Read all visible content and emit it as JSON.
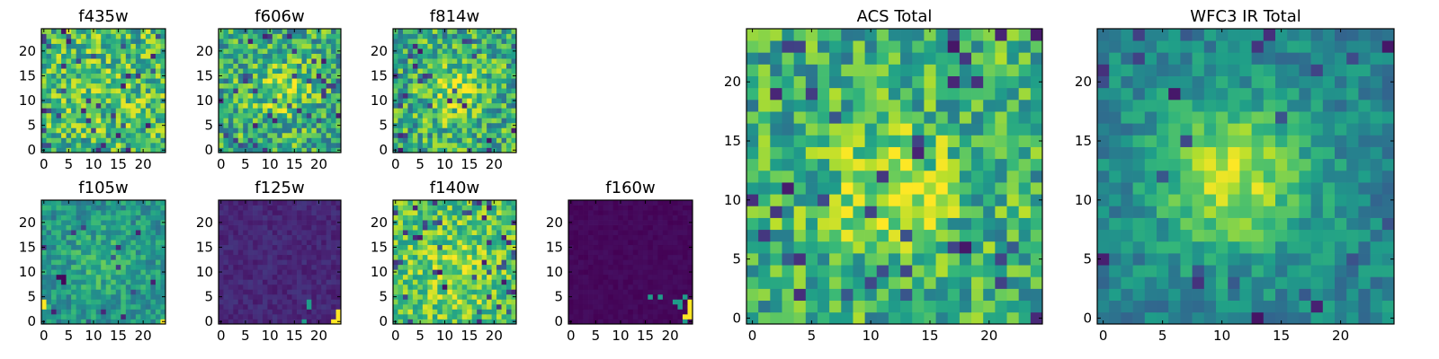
{
  "colormap": "viridis",
  "colors": {
    "viridis_low": "#440154",
    "viridis_mid": "#21918c",
    "viridis_high": "#fde725",
    "frame": "#000000",
    "background": "#ffffff"
  },
  "chart_data": [
    {
      "type": "heatmap",
      "title": "f435w",
      "grid": false,
      "xlim": [
        0,
        24
      ],
      "ylim": [
        0,
        24
      ],
      "xticks": [
        "0",
        "5",
        "10",
        "15",
        "20"
      ],
      "yticks": [
        "0",
        "5",
        "10",
        "15",
        "20"
      ],
      "value_range": [
        0,
        1
      ],
      "pattern": {
        "base": 0.68,
        "noise": 0.28,
        "peak": 0.05,
        "sigma": 5,
        "cx": 12,
        "cy": 12,
        "dips": 0.05,
        "seed": 11
      }
    },
    {
      "type": "heatmap",
      "title": "f606w",
      "grid": false,
      "xlim": [
        0,
        24
      ],
      "ylim": [
        0,
        24
      ],
      "xticks": [
        "0",
        "5",
        "10",
        "15",
        "20"
      ],
      "yticks": [
        "0",
        "5",
        "10",
        "15",
        "20"
      ],
      "value_range": [
        0,
        1
      ],
      "pattern": {
        "base": 0.62,
        "noise": 0.28,
        "peak": 0.22,
        "sigma": 4,
        "cx": 12,
        "cy": 12,
        "dips": 0.05,
        "seed": 23
      }
    },
    {
      "type": "heatmap",
      "title": "f814w",
      "grid": false,
      "xlim": [
        0,
        24
      ],
      "ylim": [
        0,
        24
      ],
      "xticks": [
        "0",
        "5",
        "10",
        "15",
        "20"
      ],
      "yticks": [
        "0",
        "5",
        "10",
        "15",
        "20"
      ],
      "value_range": [
        0,
        1
      ],
      "pattern": {
        "base": 0.62,
        "noise": 0.28,
        "peak": 0.25,
        "sigma": 4,
        "cx": 12,
        "cy": 12,
        "dips": 0.05,
        "seed": 37
      }
    },
    {
      "type": "heatmap",
      "title": "f105w",
      "grid": false,
      "xlim": [
        0,
        24
      ],
      "ylim": [
        0,
        24
      ],
      "xticks": [
        "0",
        "5",
        "10",
        "15",
        "20"
      ],
      "yticks": [
        "0",
        "5",
        "10",
        "15",
        "20"
      ],
      "value_range": [
        0,
        1
      ],
      "pattern": {
        "base": 0.52,
        "noise": 0.16,
        "peak": 0.12,
        "sigma": 5,
        "cx": 12,
        "cy": 12,
        "dips": 0.02,
        "seed": 41,
        "hot": [
          [
            0,
            4
          ],
          [
            0,
            3
          ],
          [
            24,
            0
          ]
        ],
        "cold": [
          [
            4,
            9
          ],
          [
            3,
            9
          ],
          [
            4,
            8
          ]
        ]
      }
    },
    {
      "type": "heatmap",
      "title": "f125w",
      "grid": false,
      "xlim": [
        0,
        24
      ],
      "ylim": [
        0,
        24
      ],
      "xticks": [
        "0",
        "5",
        "10",
        "15",
        "20"
      ],
      "yticks": [
        "0",
        "5",
        "10",
        "15",
        "20"
      ],
      "value_range": [
        0,
        1
      ],
      "pattern": {
        "base": 0.11,
        "noise": 0.05,
        "peak": 0.0,
        "sigma": 5,
        "cx": 12,
        "cy": 12,
        "dips": 0.0,
        "seed": 53,
        "hot": [
          [
            24,
            0
          ],
          [
            24,
            1
          ],
          [
            23,
            0
          ],
          [
            24,
            2
          ]
        ],
        "warm": [
          [
            18,
            4
          ],
          [
            18,
            3
          ],
          [
            17,
            0
          ]
        ]
      }
    },
    {
      "type": "heatmap",
      "title": "f140w",
      "grid": false,
      "xlim": [
        0,
        24
      ],
      "ylim": [
        0,
        24
      ],
      "xticks": [
        "0",
        "5",
        "10",
        "15",
        "20"
      ],
      "yticks": [
        "0",
        "5",
        "10",
        "15",
        "20"
      ],
      "value_range": [
        0,
        1
      ],
      "pattern": {
        "base": 0.72,
        "noise": 0.22,
        "peak": 0.1,
        "sigma": 6,
        "cx": 12,
        "cy": 10,
        "dips": 0.06,
        "seed": 67
      }
    },
    {
      "type": "heatmap",
      "title": "f160w",
      "grid": false,
      "xlim": [
        0,
        24
      ],
      "ylim": [
        0,
        24
      ],
      "xticks": [
        "0",
        "5",
        "10",
        "15",
        "20"
      ],
      "yticks": [
        "0",
        "5",
        "10",
        "15",
        "20"
      ],
      "value_range": [
        0,
        1
      ],
      "pattern": {
        "base": 0.02,
        "noise": 0.02,
        "peak": 0.0,
        "sigma": 5,
        "cx": 12,
        "cy": 12,
        "dips": 0.0,
        "seed": 71,
        "hot": [
          [
            24,
            2
          ],
          [
            24,
            1
          ],
          [
            23,
            1
          ],
          [
            24,
            3
          ],
          [
            24,
            4
          ]
        ],
        "warm": [
          [
            16,
            5
          ],
          [
            18,
            5
          ],
          [
            21,
            4
          ],
          [
            22,
            4
          ],
          [
            23,
            5
          ],
          [
            22,
            3
          ],
          [
            23,
            0
          ]
        ]
      }
    },
    {
      "type": "heatmap",
      "title": "ACS Total",
      "grid": false,
      "xlim": [
        0,
        24
      ],
      "ylim": [
        0,
        24
      ],
      "xticks": [
        "0",
        "5",
        "10",
        "15",
        "20"
      ],
      "yticks": [
        "0",
        "5",
        "10",
        "15",
        "20"
      ],
      "value_range": [
        0,
        1
      ],
      "pattern": {
        "base": 0.64,
        "noise": 0.26,
        "peak": 0.3,
        "sigma": 3.5,
        "cx": 12,
        "cy": 11,
        "dips": 0.06,
        "seed": 89
      }
    },
    {
      "type": "heatmap",
      "title": "WFC3 IR Total",
      "grid": false,
      "xlim": [
        0,
        24
      ],
      "ylim": [
        0,
        24
      ],
      "xticks": [
        "0",
        "5",
        "10",
        "15",
        "20"
      ],
      "yticks": [
        "0",
        "5",
        "10",
        "15",
        "20"
      ],
      "value_range": [
        0,
        1
      ],
      "pattern": {
        "base": 0.45,
        "noise": 0.14,
        "peak": 0.45,
        "sigma": 4.5,
        "cx": 11,
        "cy": 12,
        "dips": 0.04,
        "seed": 97
      }
    }
  ]
}
